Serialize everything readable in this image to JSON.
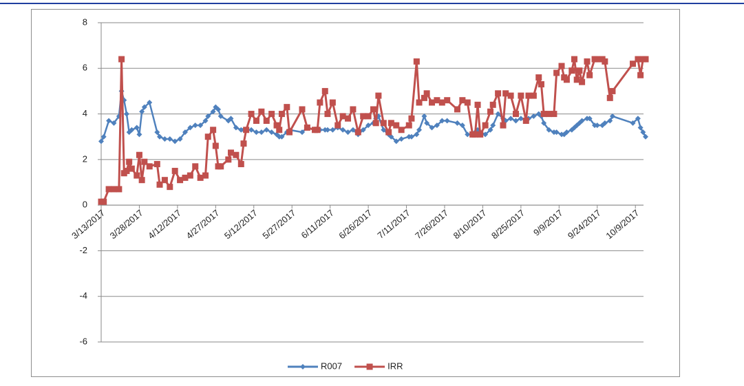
{
  "chart_data": {
    "type": "line",
    "x": [
      "3/13/2017",
      "3/14/2017",
      "3/16/2017",
      "3/18/2017",
      "3/20/2017",
      "3/21/2017",
      "3/22/2017",
      "3/23/2017",
      "3/24/2017",
      "3/25/2017",
      "3/27/2017",
      "3/28/2017",
      "3/29/2017",
      "3/30/2017",
      "4/1/2017",
      "4/4/2017",
      "4/5/2017",
      "4/7/2017",
      "4/9/2017",
      "4/11/2017",
      "4/13/2017",
      "4/15/2017",
      "4/17/2017",
      "4/19/2017",
      "4/21/2017",
      "4/23/2017",
      "4/24/2017",
      "4/26/2017",
      "4/27/2017",
      "4/28/2017",
      "4/29/2017",
      "5/2/2017",
      "5/3/2017",
      "5/5/2017",
      "5/7/2017",
      "5/8/2017",
      "5/9/2017",
      "5/11/2017",
      "5/13/2017",
      "5/15/2017",
      "5/17/2017",
      "5/19/2017",
      "5/21/2017",
      "5/22/2017",
      "5/23/2017",
      "5/25/2017",
      "5/26/2017",
      "5/31/2017",
      "6/2/2017",
      "6/5/2017",
      "6/6/2017",
      "6/7/2017",
      "6/9/2017",
      "6/10/2017",
      "6/12/2017",
      "6/14/2017",
      "6/16/2017",
      "6/18/2017",
      "6/20/2017",
      "6/22/2017",
      "6/24/2017",
      "6/26/2017",
      "6/28/2017",
      "6/29/2017",
      "6/30/2017",
      "7/2/2017",
      "7/4/2017",
      "7/5/2017",
      "7/7/2017",
      "7/9/2017",
      "7/12/2017",
      "7/13/2017",
      "7/15/2017",
      "7/16/2017",
      "7/18/2017",
      "7/19/2017",
      "7/21/2017",
      "7/23/2017",
      "7/25/2017",
      "7/27/2017",
      "7/31/2017",
      "8/2/2017",
      "8/4/2017",
      "8/6/2017",
      "8/7/2017",
      "8/8/2017",
      "8/9/2017",
      "8/11/2017",
      "8/13/2017",
      "8/14/2017",
      "8/16/2017",
      "8/18/2017",
      "8/19/2017",
      "8/21/2017",
      "8/23/2017",
      "8/25/2017",
      "8/27/2017",
      "8/28/2017",
      "8/30/2017",
      "9/1/2017",
      "9/2/2017",
      "9/3/2017",
      "9/5/2017",
      "9/7/2017",
      "9/8/2017",
      "9/10/2017",
      "9/11/2017",
      "9/12/2017",
      "9/14/2017",
      "9/15/2017",
      "9/16/2017",
      "9/17/2017",
      "9/18/2017",
      "9/20/2017",
      "9/21/2017",
      "9/23/2017",
      "9/24/2017",
      "9/26/2017",
      "9/27/2017",
      "9/29/2017",
      "9/30/2017",
      "10/8/2017",
      "10/10/2017",
      "10/11/2017",
      "10/12/2017",
      "10/13/2017"
    ],
    "series": [
      {
        "name": "R007",
        "color": "#4f81bd",
        "marker": "diamond",
        "values": [
          2.8,
          3.0,
          3.7,
          3.6,
          3.9,
          5.0,
          4.6,
          4.0,
          3.2,
          3.3,
          3.4,
          3.1,
          4.1,
          4.3,
          4.5,
          3.2,
          3.0,
          2.9,
          2.9,
          2.8,
          2.9,
          3.2,
          3.4,
          3.5,
          3.5,
          3.7,
          3.9,
          4.1,
          4.3,
          4.2,
          3.9,
          3.7,
          3.8,
          3.4,
          3.3,
          3.3,
          3.3,
          3.3,
          3.2,
          3.2,
          3.3,
          3.2,
          3.1,
          3.0,
          3.0,
          3.2,
          3.3,
          3.2,
          3.4,
          3.3,
          3.3,
          3.3,
          3.3,
          3.3,
          3.3,
          3.4,
          3.3,
          3.2,
          3.3,
          3.1,
          3.3,
          3.5,
          3.6,
          3.8,
          3.9,
          3.3,
          3.1,
          3.0,
          2.8,
          2.9,
          3.0,
          3.0,
          3.1,
          3.3,
          3.9,
          3.6,
          3.4,
          3.5,
          3.7,
          3.7,
          3.6,
          3.5,
          3.1,
          3.1,
          3.2,
          3.3,
          3.2,
          3.1,
          3.3,
          3.5,
          4.0,
          3.8,
          3.7,
          3.8,
          3.7,
          3.8,
          3.7,
          3.8,
          3.9,
          4.0,
          3.9,
          3.6,
          3.3,
          3.2,
          3.2,
          3.1,
          3.1,
          3.2,
          3.3,
          3.4,
          3.5,
          3.6,
          3.7,
          3.8,
          3.8,
          3.5,
          3.5,
          3.5,
          3.6,
          3.7,
          3.9,
          3.6,
          3.8,
          3.4,
          3.2,
          3.0
        ]
      },
      {
        "name": "IRR",
        "color": "#c0504d",
        "marker": "square",
        "values": [
          0.15,
          0.15,
          0.7,
          0.7,
          0.7,
          6.4,
          1.4,
          1.5,
          1.9,
          1.6,
          1.3,
          2.2,
          1.1,
          1.9,
          1.7,
          1.8,
          0.9,
          1.1,
          0.8,
          1.5,
          1.1,
          1.2,
          1.3,
          1.7,
          1.2,
          1.3,
          3.0,
          3.3,
          2.6,
          1.7,
          1.7,
          2.0,
          2.3,
          2.2,
          1.8,
          2.7,
          3.3,
          4.0,
          3.7,
          4.1,
          3.7,
          4.0,
          3.5,
          3.3,
          4.0,
          4.3,
          3.2,
          4.2,
          3.4,
          3.3,
          3.3,
          4.5,
          5.0,
          4.0,
          4.5,
          3.5,
          3.9,
          3.8,
          4.2,
          3.2,
          3.9,
          3.9,
          4.2,
          3.6,
          4.8,
          3.6,
          3.2,
          3.6,
          3.5,
          3.3,
          3.5,
          3.8,
          6.3,
          4.5,
          4.7,
          4.9,
          4.5,
          4.6,
          4.5,
          4.6,
          4.2,
          4.6,
          4.5,
          3.1,
          3.1,
          4.4,
          3.1,
          3.5,
          4.1,
          4.4,
          4.9,
          3.5,
          4.9,
          4.8,
          4.0,
          4.8,
          3.7,
          4.8,
          4.8,
          5.6,
          5.3,
          4.0,
          4.0,
          4.0,
          5.8,
          6.1,
          5.6,
          5.5,
          5.9,
          6.4,
          5.5,
          5.9,
          5.4,
          6.3,
          5.7,
          6.4,
          6.4,
          6.4,
          6.3,
          4.7,
          5.0,
          6.2,
          6.4,
          5.7,
          6.4,
          6.4
        ]
      }
    ],
    "xlim": [
      "3/13/2017",
      "10/13/2017"
    ],
    "xticks": [
      "3/13/2017",
      "3/28/2017",
      "4/12/2017",
      "4/27/2017",
      "5/12/2017",
      "5/27/2017",
      "6/11/2017",
      "6/26/2017",
      "7/11/2017",
      "7/26/2017",
      "8/10/2017",
      "8/25/2017",
      "9/9/2017",
      "9/24/2017",
      "10/9/2017"
    ],
    "ylim": [
      -6,
      8
    ],
    "yticks": [
      -6,
      -4,
      -2,
      0,
      2,
      4,
      6,
      8
    ],
    "grid": true,
    "legend": "bottom"
  }
}
